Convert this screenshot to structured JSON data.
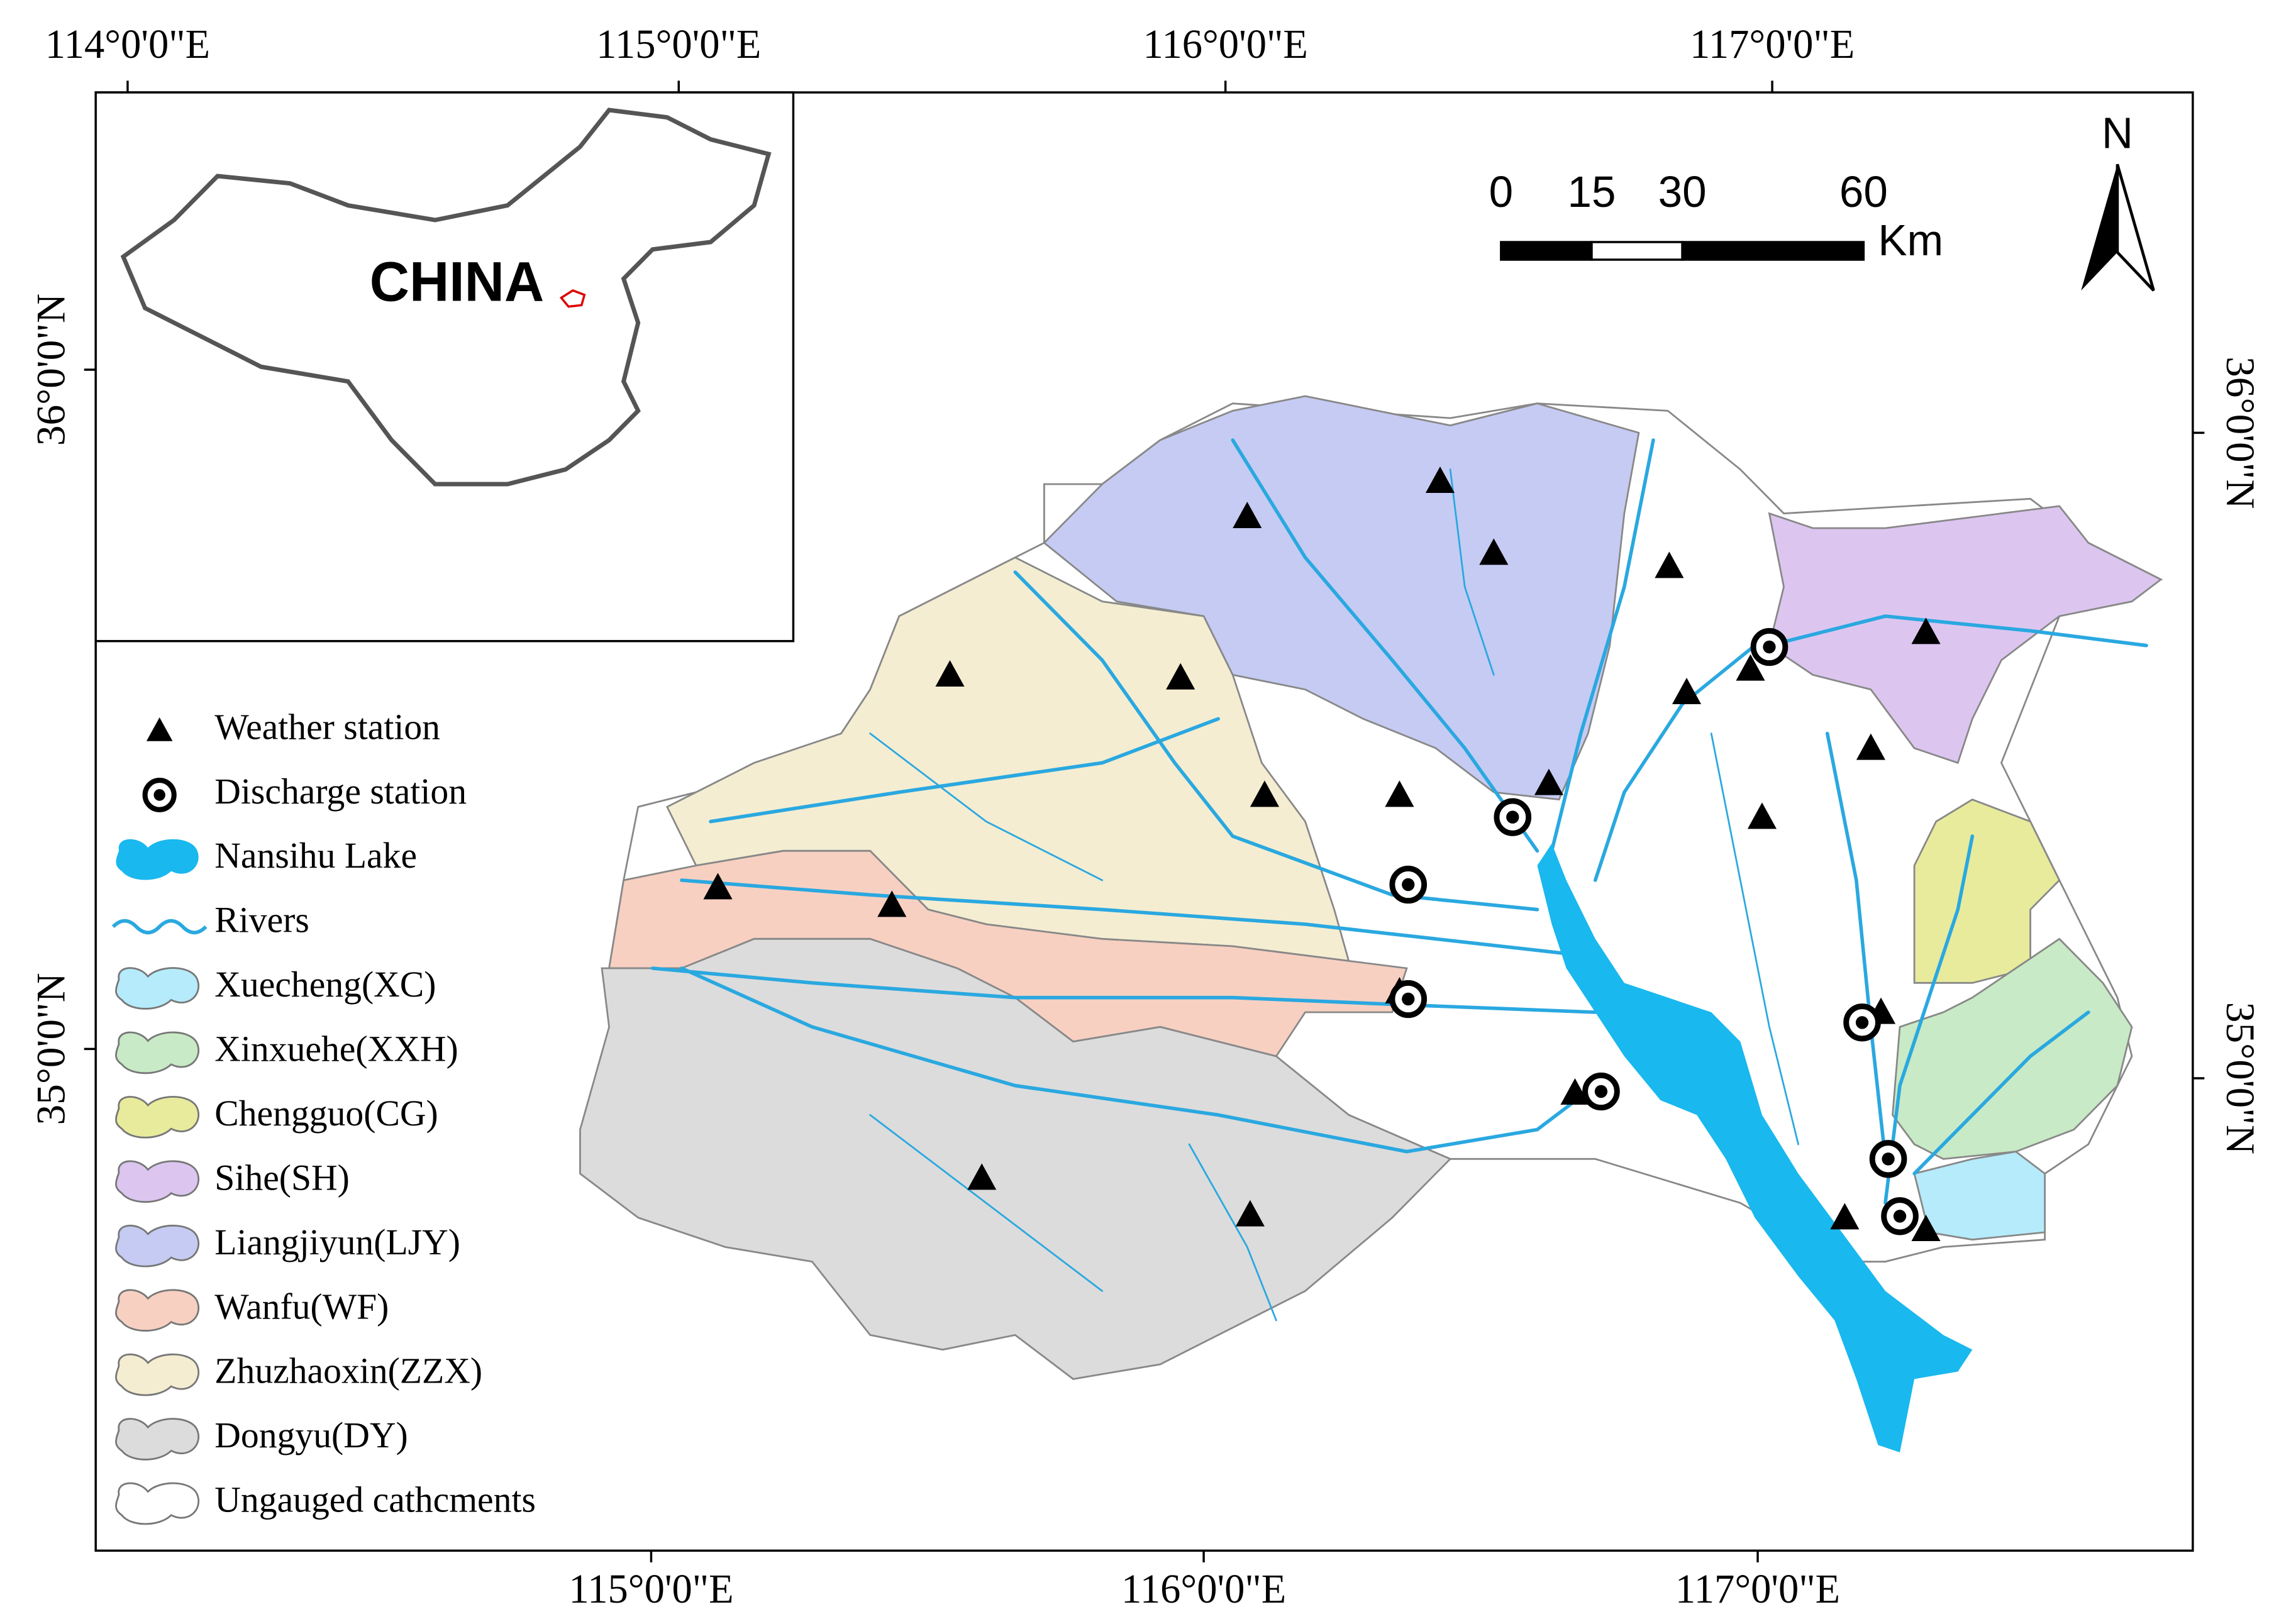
{
  "axes": {
    "top": [
      "114°0'0\"E",
      "115°0'0\"E",
      "116°0'0\"E",
      "117°0'0\"E"
    ],
    "bottom": [
      "115°0'0\"E",
      "116°0'0\"E",
      "117°0'0\"E"
    ],
    "left": [
      "36°0'0\"N",
      "35°0'0\"N"
    ],
    "right": [
      "36°0'0\"N",
      "35°0'0\"N"
    ]
  },
  "scale_bar": {
    "ticks": [
      0,
      15,
      30,
      60
    ],
    "unit": "Km"
  },
  "north_arrow": "N",
  "inset": {
    "label": "CHINA"
  },
  "legend": [
    {
      "label": "Weather station"
    },
    {
      "label": "Discharge station"
    },
    {
      "label": "Nansihu Lake",
      "color": "#19b8ee"
    },
    {
      "label": "Rivers",
      "color": "#2aa8e0"
    },
    {
      "label": "Xuecheng(XC)",
      "color": "#b5ebfa"
    },
    {
      "label": "Xinxuehe(XXH)",
      "color": "#c8eac6"
    },
    {
      "label": "Chengguo(CG)",
      "color": "#e8eb9c"
    },
    {
      "label": "Sihe(SH)",
      "color": "#dcc6f0"
    },
    {
      "label": "Liangjiyun(LJY)",
      "color": "#c6cbf3"
    },
    {
      "label": "Wanfu(WF)",
      "color": "#f7d0c2"
    },
    {
      "label": "Zhuzhaoxin(ZZX)",
      "color": "#f4edd2"
    },
    {
      "label": "Dongyu(DY)",
      "color": "#dcdcdc"
    },
    {
      "label": "Ungauged cathcments",
      "color": "#ffffff"
    }
  ]
}
